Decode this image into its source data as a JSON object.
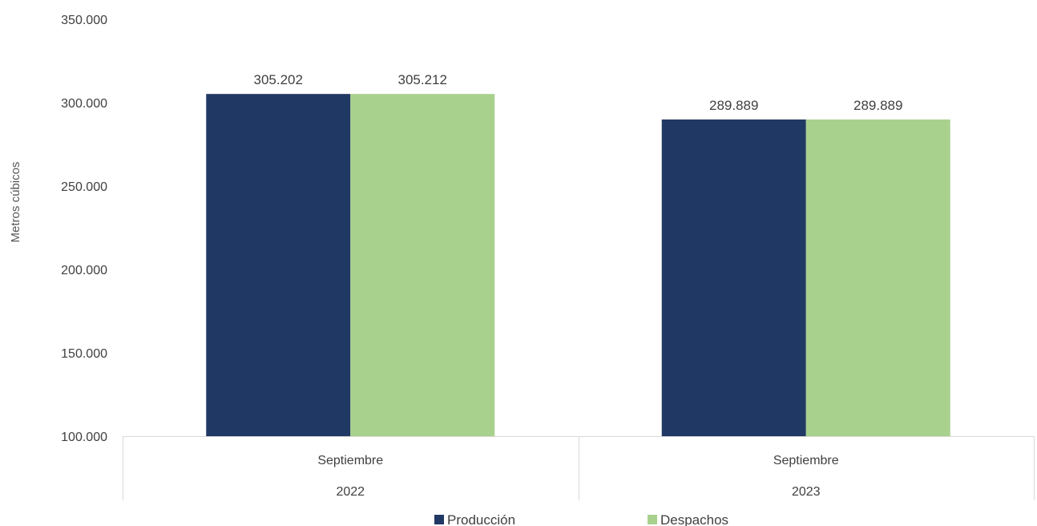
{
  "chart_data": {
    "type": "bar",
    "title": "",
    "ylabel": "Metros cúbicos",
    "xlabel": "",
    "ylim": [
      100000,
      350000
    ],
    "yticks": [
      100000,
      150000,
      200000,
      250000,
      300000,
      350000
    ],
    "ytick_labels": [
      "100.000",
      "150.000",
      "200.000",
      "250.000",
      "300.000",
      "350.000"
    ],
    "categories": [
      "Septiembre",
      "Septiembre"
    ],
    "groups": [
      "2022",
      "2023"
    ],
    "series": [
      {
        "name": "Producción",
        "color": "#203864",
        "values": [
          305202,
          289889
        ],
        "labels": [
          "305.202",
          "289.889"
        ]
      },
      {
        "name": "Despachos",
        "color": "#A9D18E",
        "values": [
          305212,
          289889
        ],
        "labels": [
          "305.212",
          "289.889"
        ]
      }
    ],
    "grid": false,
    "legend": "bottom"
  }
}
